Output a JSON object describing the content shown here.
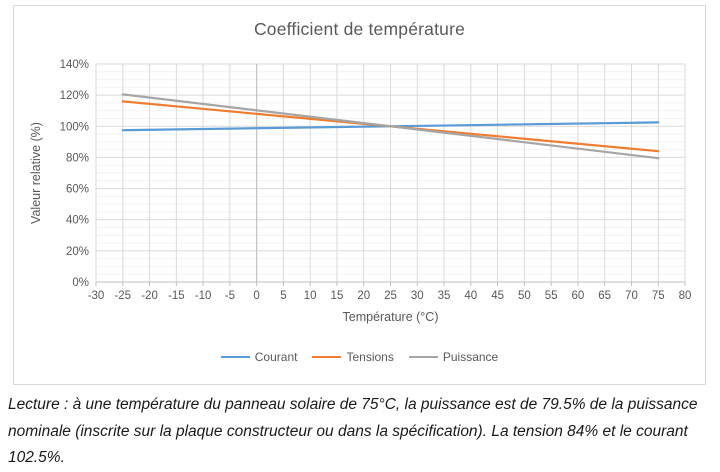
{
  "chart_data": {
    "type": "line",
    "title": "Coefficient de température",
    "xlabel": "Température (°C)",
    "ylabel": "Valeur relative (%)",
    "xlim": [
      -30,
      80
    ],
    "ylim": [
      0,
      140
    ],
    "x_ticks": [
      -30,
      -25,
      -20,
      -15,
      -10,
      -5,
      0,
      5,
      10,
      15,
      20,
      25,
      30,
      35,
      40,
      45,
      50,
      55,
      60,
      65,
      70,
      75,
      80
    ],
    "y_ticks": [
      0,
      20,
      40,
      60,
      80,
      100,
      120,
      140
    ],
    "y_tick_suffix": "%",
    "minor_y_step": 5,
    "grid": true,
    "legend_position": "bottom",
    "x": [
      -25,
      75
    ],
    "series": [
      {
        "name": "Courant",
        "color": "#5B9BD5",
        "values": [
          97.5,
          102.5
        ]
      },
      {
        "name": "Tensions",
        "color": "#ED7D31",
        "values": [
          116,
          84
        ]
      },
      {
        "name": "Puissance",
        "color": "#A5A5A5",
        "values": [
          120.5,
          79.5
        ]
      }
    ],
    "colors": {
      "text": "#595959",
      "grid_major": "#d9d9d9",
      "grid_minor": "#f2f2f2",
      "axis": "#bfbfbf",
      "frame_border": "#d9d9d9"
    }
  },
  "caption": "Lecture : à une température du panneau solaire de 75°C, la puissance est de 79.5% de la puissance nominale (inscrite sur la plaque constructeur ou dans la spécification). La tension 84% et le courant 102.5%."
}
